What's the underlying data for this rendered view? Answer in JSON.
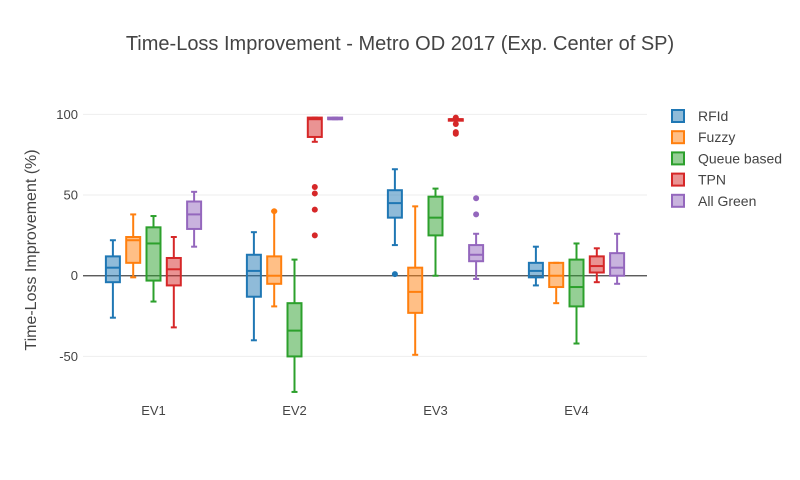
{
  "chart_data": {
    "type": "box",
    "title": "Time-Loss Improvement - Metro OD 2017 (Exp. Center of SP)",
    "xlabel": "",
    "ylabel": "Time-Loss Improvement (%)",
    "ylim": [
      -77,
      112
    ],
    "yticks": [
      -50,
      0,
      50,
      100
    ],
    "grid": true,
    "legend_position": "right",
    "categories": [
      "EV1",
      "EV2",
      "EV3",
      "EV4"
    ],
    "series": [
      {
        "name": "RFId",
        "color": "#1f77b4",
        "fill": "rgba(31,119,180,0.5)",
        "boxes": [
          {
            "min": -26,
            "q1": -4,
            "median": 5,
            "q3": 12,
            "max": 22,
            "outliers": []
          },
          {
            "min": -40,
            "q1": -13,
            "median": 3,
            "q3": 13,
            "max": 27,
            "outliers": []
          },
          {
            "min": 19,
            "q1": 36,
            "median": 45,
            "q3": 53,
            "max": 66,
            "outliers": [
              1
            ]
          },
          {
            "min": -6,
            "q1": -1,
            "median": 3,
            "q3": 8,
            "max": 18,
            "outliers": []
          }
        ]
      },
      {
        "name": "Fuzzy",
        "color": "#ff7f0e",
        "fill": "rgba(255,127,14,0.5)",
        "boxes": [
          {
            "min": -1,
            "q1": 8,
            "median": 22,
            "q3": 24,
            "max": 38,
            "outliers": []
          },
          {
            "min": -19,
            "q1": -5,
            "median": 0,
            "q3": 12,
            "max": 40,
            "outliers": [
              40
            ]
          },
          {
            "min": -49,
            "q1": -23,
            "median": -10,
            "q3": 5,
            "max": 43,
            "outliers": []
          },
          {
            "min": -17,
            "q1": -7,
            "median": 0,
            "q3": 8,
            "max": 8,
            "outliers": []
          }
        ]
      },
      {
        "name": "Queue based",
        "color": "#2ca02c",
        "fill": "rgba(44,160,44,0.5)",
        "boxes": [
          {
            "min": -16,
            "q1": -3,
            "median": 20,
            "q3": 30,
            "max": 37,
            "outliers": []
          },
          {
            "min": -72,
            "q1": -50,
            "median": -34,
            "q3": -17,
            "max": 10,
            "outliers": []
          },
          {
            "min": 0,
            "q1": 25,
            "median": 36,
            "q3": 49,
            "max": 54,
            "outliers": []
          },
          {
            "min": -42,
            "q1": -19,
            "median": -7,
            "q3": 10,
            "max": 20,
            "outliers": []
          }
        ]
      },
      {
        "name": "TPN",
        "color": "#d62728",
        "fill": "rgba(214,39,40,0.5)",
        "boxes": [
          {
            "min": -32,
            "q1": -6,
            "median": 4,
            "q3": 11,
            "max": 24,
            "outliers": []
          },
          {
            "min": 83,
            "q1": 86,
            "median": 97,
            "q3": 98,
            "max": 98,
            "outliers": [
              25,
              41,
              51,
              55
            ]
          },
          {
            "min": 97,
            "q1": 97,
            "median": 97,
            "q3": 97,
            "max": 97,
            "outliers": [
              88,
              89,
              94,
              98
            ]
          },
          {
            "min": -4,
            "q1": 2,
            "median": 6,
            "q3": 12,
            "max": 17,
            "outliers": []
          }
        ]
      },
      {
        "name": "All Green",
        "color": "#9467bd",
        "fill": "rgba(148,103,189,0.5)",
        "boxes": [
          {
            "min": 18,
            "q1": 29,
            "median": 38,
            "q3": 46,
            "max": 52,
            "outliers": []
          },
          {
            "min": 97,
            "q1": 97,
            "median": 97,
            "q3": 98,
            "max": 98,
            "outliers": []
          },
          {
            "min": -2,
            "q1": 9,
            "median": 13,
            "q3": 19,
            "max": 26,
            "outliers": [
              38,
              48
            ]
          },
          {
            "min": -5,
            "q1": 0,
            "median": 5,
            "q3": 14,
            "max": 26,
            "outliers": []
          }
        ]
      }
    ]
  }
}
